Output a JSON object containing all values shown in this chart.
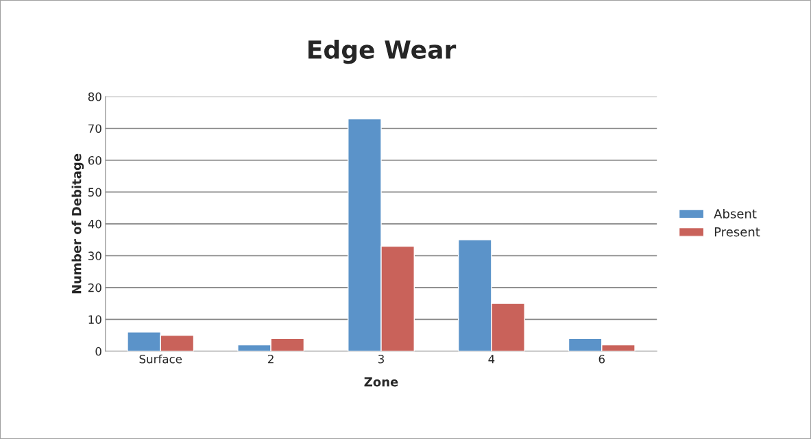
{
  "chart_data": {
    "type": "bar",
    "title": "Edge Wear",
    "xlabel": "Zone",
    "ylabel": "Number of Debitage",
    "categories": [
      "Surface",
      "2",
      "3",
      "4",
      "6"
    ],
    "series": [
      {
        "name": "Absent",
        "color": "#5b93c9",
        "values": [
          6,
          2,
          73,
          35,
          4
        ]
      },
      {
        "name": "Present",
        "color": "#c9625a",
        "values": [
          5,
          4,
          33,
          15,
          2
        ]
      }
    ],
    "ylim": [
      0,
      80
    ],
    "yticks": [
      0,
      10,
      20,
      30,
      40,
      50,
      60,
      70,
      80
    ],
    "grid": "y",
    "legend": "right"
  }
}
